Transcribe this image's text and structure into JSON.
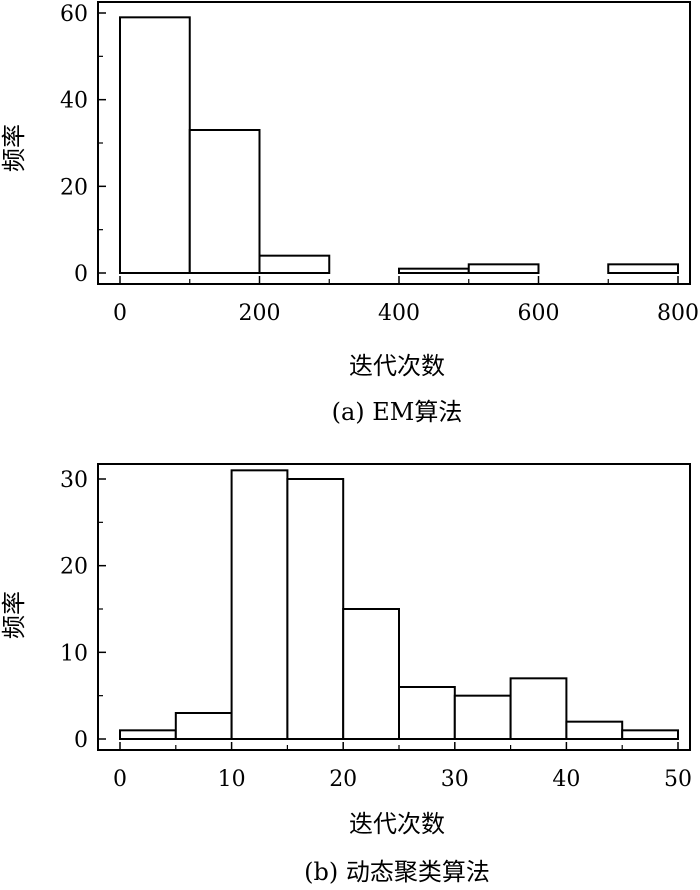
{
  "chart_data": [
    {
      "type": "bar",
      "histogram": true,
      "caption": "(a) EM算法",
      "xlabel": "迭代次数",
      "ylabel": "频率",
      "xlim": [
        0,
        800
      ],
      "ylim": [
        0,
        60
      ],
      "xticks": [
        0,
        200,
        400,
        600,
        800
      ],
      "yticks": [
        0,
        20,
        40,
        60
      ],
      "bin_edges": [
        0,
        100,
        200,
        300,
        400,
        500,
        600,
        700,
        800
      ],
      "values": [
        59,
        33,
        4,
        0,
        1,
        2,
        0,
        2
      ],
      "grid": false
    },
    {
      "type": "bar",
      "histogram": true,
      "caption": "(b) 动态聚类算法",
      "xlabel": "迭代次数",
      "ylabel": "频率",
      "xlim": [
        0,
        50
      ],
      "ylim": [
        0,
        30
      ],
      "xticks": [
        0,
        10,
        20,
        30,
        40,
        50
      ],
      "yticks": [
        0,
        10,
        20,
        30
      ],
      "bin_edges": [
        0,
        5,
        10,
        15,
        20,
        25,
        30,
        35,
        40,
        45,
        50
      ],
      "values": [
        1,
        3,
        31,
        30,
        15,
        6,
        5,
        7,
        2,
        1
      ],
      "grid": false
    }
  ]
}
